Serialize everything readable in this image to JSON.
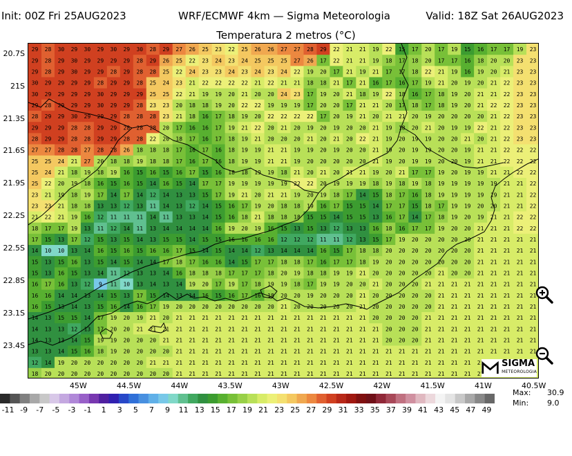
{
  "header": {
    "init": "Init: 00Z Fri 25AUG2023",
    "model": "WRF/ECMWF 4km — Sigma Meteorologia",
    "valid": "Valid: 18Z Sat 26AUG2023",
    "title": "Temperatura 2 metros (°C)"
  },
  "axes": {
    "lat_labels": [
      "20.7S",
      "21S",
      "21.3S",
      "21.6S",
      "21.9S",
      "22.2S",
      "22.5S",
      "22.8S",
      "23.1S",
      "23.4S"
    ],
    "lon_labels": [
      "45W",
      "44.5W",
      "44W",
      "43.5W",
      "43W",
      "42.5W",
      "42W",
      "41.5W",
      "41W",
      "40.5W"
    ]
  },
  "stats": {
    "max_label": "Max:",
    "max_value": "30.9",
    "min_label": "Min:",
    "min_value": "9.0"
  },
  "logo": {
    "name": "SIGMA",
    "sub": "METEOROLOGIA"
  },
  "colorbar": {
    "ticks": [
      "-11",
      "-9",
      "-7",
      "-5",
      "-3",
      "-1",
      "1",
      "3",
      "5",
      "7",
      "9",
      "11",
      "13",
      "15",
      "17",
      "19",
      "21",
      "23",
      "25",
      "27",
      "29",
      "31",
      "33",
      "35",
      "37",
      "39",
      "41",
      "43",
      "45",
      "47",
      "49"
    ],
    "colors": [
      "#2a2a2a",
      "#555555",
      "#808080",
      "#a8a8a8",
      "#c8c8c8",
      "#d8c8e8",
      "#c4a8e0",
      "#b088d8",
      "#9860c8",
      "#7838b0",
      "#5020a0",
      "#3020b0",
      "#2848c8",
      "#3070d8",
      "#4890e0",
      "#60b0e8",
      "#78c8e8",
      "#80d8c8",
      "#60c090",
      "#40a860",
      "#309040",
      "#3c9c30",
      "#58b030",
      "#78c038",
      "#98d048",
      "#b8e058",
      "#d8ec68",
      "#ecf078",
      "#f4e070",
      "#f4c860",
      "#f0a850",
      "#ec8840",
      "#e06030",
      "#d04020",
      "#b82818",
      "#a01810",
      "#801010",
      "#701018",
      "#902838",
      "#a84858",
      "#c07080",
      "#d090a0",
      "#e0b8c0",
      "#ecd8dc",
      "#f4f4f4",
      "#e4e4e4",
      "#c8c8c8",
      "#a8a8a8",
      "#888888",
      "#686868"
    ],
    "color_range": [
      -12,
      50
    ]
  },
  "map_data": {
    "lon_range": [
      -45.5,
      -40.45
    ],
    "lat_range": [
      -23.7,
      -20.6
    ],
    "grid_rows": [
      "29 28 30 29 30 29 30 29 30 28 29 27 26 25 23 22 25 26 26 27 27 28 29 22 21 21 19 22 15 17 20 17 19 15 16 17 17 19 23",
      "29 28 29 30 29 29 29 29 28 29 26 25 22 23 24 23 24 25 25 25 27 26 17 22 21 21 19 18 17 18 20 17 17 16 18 20 20 23 23",
      "29 28 29 30 29 29 28 29 28 28 25 22 24 23 23 24 23 24 23 24 22 19 20 17 21 19 21 17 17 18 22 21 19 16 19 20 21 23 23",
      "30 29 29 29 29 28 29 29 28 25 24 23 21 22 22 22 22 21 22 21 21 18 18 21 17 21 16 17 16 17 19 21 20 19 20 21 22 23 23",
      "30 29 29 29 29 30 29 29 29 25 25 22 21 19 19 20 21 20 20 24 23 17 19 20 21 18 19 22 18 16 17 18 19 20 21 21 22 23 23",
      "29 28 29 29 29 30 29 29 28 23 23 20 18 18 19 20 22 22 19 19 19 17 20 20 17 21 21 20 17 18 17 18 19 20 21 22 22 23 23",
      "28 29 29 30 29 29 29 28 28 28 23 21 18 16 17 18 19 20 22 22 22 22 17 20 19 21 20 21 21 20 19 20 20 20 20 21 22 23 23",
      "29 29 29 28 28 29 29 28 28 28 20 17 16 16 17 19 21 22 20 21 20 19 20 19 20 20 21 19 18 20 21 20 19 19 22 21 22 23 23",
      "28 29 29 28 28 29 29 28 28 22 20 18 17 16 17 18 19 21 20 20 20 21 20 21 20 22 21 19 20 19 19 20 20 21 20 21 22 23 23",
      "27 27 28 28 27 28 28 26 18 18 18 17 16 17 16 18 19 19 21 21 19 19 20 19 20 20 21 19 20 19 19 20 20 19 21 21 22 22 22",
      "25 25 24 21 27 20 18 18 19 18 18 17 16 17 16 18 19 19 21 21 19 20 20 20 20 20 21 19 20 19 19 20 20 19 21 21 22 22 22",
      "25 24 21 18 19 18 19 16 15 16 15 16 17 15 16 18 18 19 19 18 21 20 21 20 21 21 19 20 21 17 17 19 20 19 19 21 21 22 22",
      "25 22 20 19 18 16 15 16 15 14 16 15 14 17 17 19 19 19 19 19 22 22 20 19 19 19 18 19 18 19 18 19 19 19 19 19 21 21 22",
      "23 21 19 18 19 17 14 17 14 12 14 13 13 15 17 19 21 20 21 21 19 20 19 18 17 14 15 18 17 16 18 19 19 19 19 19 21 21 22",
      "23 23 21 18 18 13 13 12 13 11 14 13 12 14 15 16 17 19 20 18 18 19 16 17 15 15 14 17 17 15 18 17 19 19 20 20 21 21 22",
      "21 22 21 19 16 12 11 11 11 14 11 13 13 14 15 16 18 21 18 18 18 15 15 14 15 15 13 16 17 14 17 18 19 20 19 21 21 22 22",
      "18 17 17 19 13 11 12 14 11 13 14 14 14 14 16 19 20 19 16 15 13 15 13 12 13 13 16 18 16 17 17 19 20 20 21 21 21 22 22",
      "17 15 13 17 12 15 13 15 14 13 15 15 14 15 15 16 16 16 16 12 12 12 11 11 12 13 15 17 19 20 20 20 20 20 21 21 21 21 21",
      "14 10 10 13 14 16 15 16 15 16 16 17 15 14 15 14 14 12 13 14 14 14 16 15 17 18 18 20 20 20 20 20 20 20 21 21 21 21 21",
      "15 13 15 16 13 15 14 15 14 14 17 18 17 16 16 14 15 17 17 18 18 17 16 17 17 18 19 20 20 20 20 20 20 20 21 21 21 21 21",
      "15 13 16 15 13 14 11 12 13 13 14 16 18 18 18 17 17 17 18 20 19 18 18 19 19 21 20 20 20 20 20 21 20 20 21 21 21 21 21",
      "16 17 16 13 12 9 11 10 13 14 13 14 19 20 17 19 17 18 19 19 18 17 19 19 20 20 21 20 20 20 21 21 21 21 21 21 21 21 21",
      "16 16 14 14 13 14 15 13 17 15 14 13 14 16 15 16 17 16 18 20 20 19 20 20 20 21 20 20 20 20 20 21 21 21 21 21 21 21 21",
      "16 15 13 14 13 15 16 14 16 17 19 20 20 20 20 20 20 20 20 21 20 20 20 20 20 21 20 20 20 20 20 21 21 21 21 21 21 21 21",
      "14 13 15 15 14 17 19 20 19 21 20 21 21 21 21 21 21 21 21 21 21 21 21 21 21 21 20 20 20 20 21 21 21 21 21 21 21 21 21",
      "14 13 13 12 13 17 20 20 21 21 21 21 21 21 21 21 21 21 21 21 21 21 21 21 21 21 21 20 20 20 21 21 21 21 21 21 21 21 21",
      "14 13 13 14 15 19 19 20 20 20 21 21 21 21 21 21 21 21 21 21 21 21 21 21 21 21 21 20 20 20 21 21 21 21 21 21 21 21 21",
      "13 13 14 15 16 18 19 20 20 20 20 21 21 21 21 21 21 21 21 21 21 21 21 21 21 21 21 21 21 21 21 21 21 21 21 21 21 21 21",
      "12 14 19 20 20 20 20 20 20 21 21 21 21 21 21 21 21 21 21 21 21 21 21 21 21 21 21 21 21 21 21 21 21 21 21 21 21 21 21",
      "18 20 20 20 20 20 20 20 20 20 20 21 21 21 21 21 21 21 21 21 21 21 21 21 21 21 21 21 21 21 21 21 21 21 21 21 21 21 21"
    ]
  }
}
